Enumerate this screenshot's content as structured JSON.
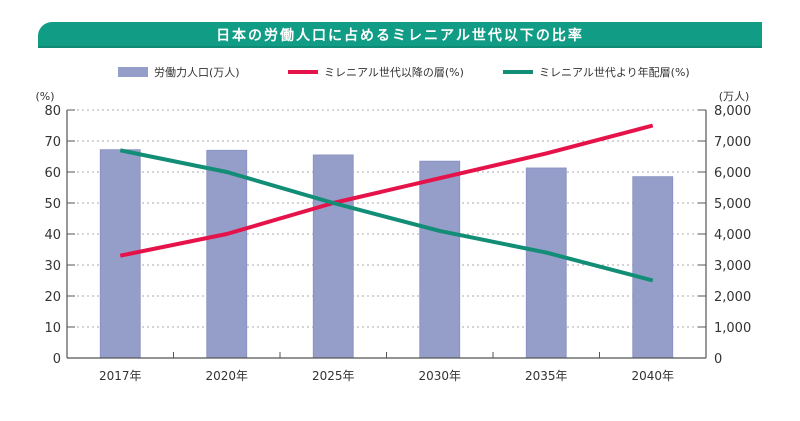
{
  "title": "日本の労働人口に占めるミレニアル世代以下の比率",
  "legend": {
    "items": [
      {
        "label": "労働力人口(万人)",
        "type": "bar",
        "color": "#959dc9"
      },
      {
        "label": "ミレニアル世代以降の層(%)",
        "type": "line",
        "color": "#e5134a"
      },
      {
        "label": "ミレニアル世代より年配層(%)",
        "type": "line",
        "color": "#128d76"
      }
    ]
  },
  "chart_data": {
    "type": "bar",
    "title": "日本の労働人口に占めるミレニアル世代以下の比率",
    "categories": [
      "2017年",
      "2020年",
      "2025年",
      "2030年",
      "2035年",
      "2040年"
    ],
    "y_left": {
      "unit_label": "(%)",
      "range": [
        0,
        80
      ],
      "ticks": [
        "0",
        "10",
        "20",
        "30",
        "40",
        "50",
        "60",
        "70",
        "80"
      ]
    },
    "y_right": {
      "unit_label": "(万人)",
      "range": [
        0,
        8000
      ],
      "ticks": [
        "0",
        "1,000",
        "2,000",
        "3,000",
        "4,000",
        "5,000",
        "6,000",
        "7,000",
        "8,000"
      ]
    },
    "grid": true,
    "legend_position": "top",
    "series": [
      {
        "name": "労働力人口(万人)",
        "type": "bar",
        "axis": "right",
        "color": "#959dc9",
        "values": [
          6720,
          6700,
          6550,
          6350,
          6130,
          5850
        ]
      },
      {
        "name": "ミレニアル世代以降の層(%)",
        "type": "line",
        "axis": "left",
        "color": "#e5134a",
        "values": [
          33,
          40,
          50,
          58,
          66,
          75
        ]
      },
      {
        "name": "ミレニアル世代より年配層(%)",
        "type": "line",
        "axis": "left",
        "color": "#128d76",
        "values": [
          67,
          60,
          50,
          41,
          34,
          25
        ]
      }
    ]
  }
}
